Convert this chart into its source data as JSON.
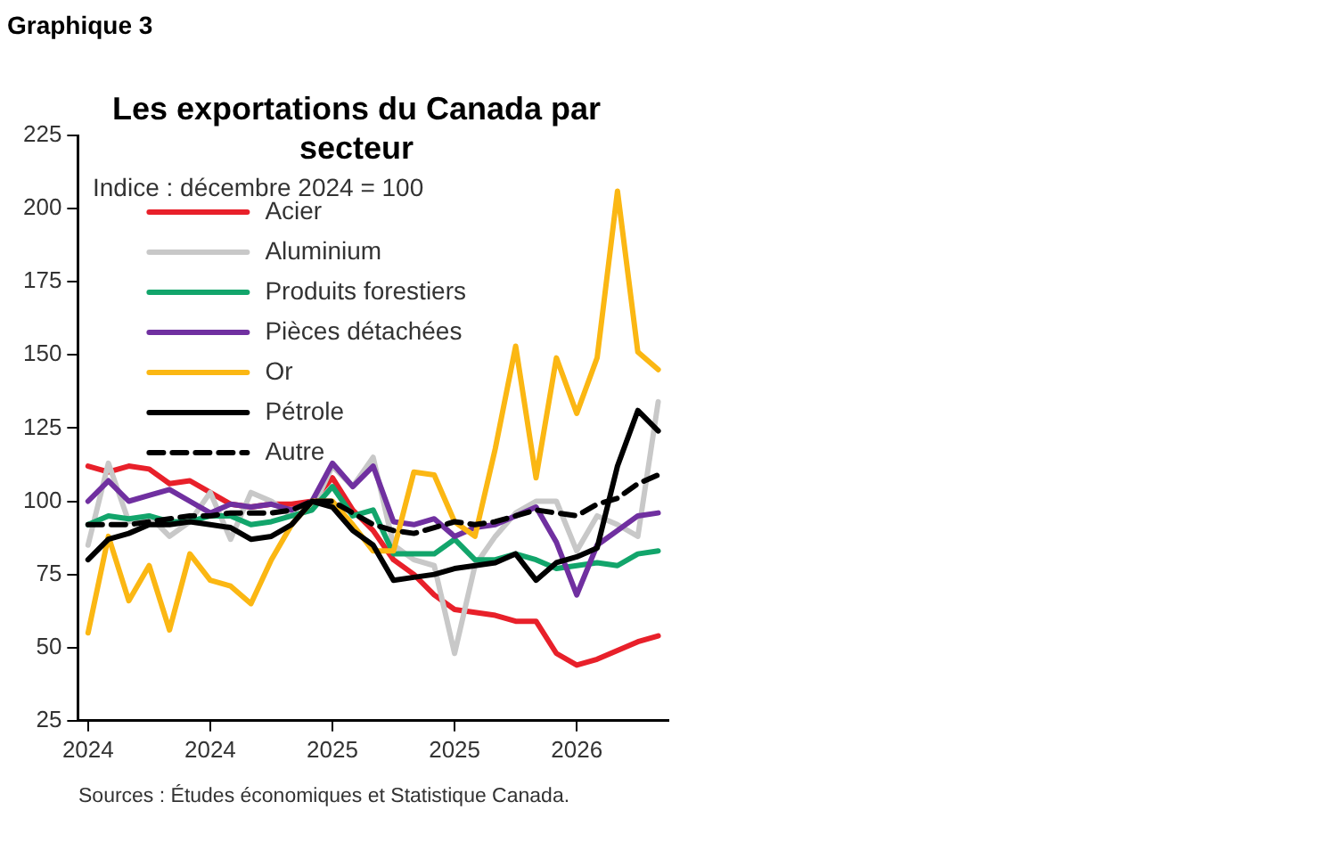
{
  "chart_data": {
    "type": "line",
    "title": "Les exportations du Canada par secteur",
    "subtitle": "Indice : décembre 2024 = 100",
    "annotations": [
      "Graphique 3",
      "Sources : Études économiques et Statistique Canada."
    ],
    "categories": [
      "2024",
      null,
      null,
      null,
      null,
      null,
      "2024",
      null,
      null,
      null,
      null,
      null,
      "2025",
      null,
      null,
      null,
      null,
      null,
      "2025",
      null,
      null,
      null,
      null,
      null,
      "2026",
      null,
      null,
      null,
      null
    ],
    "ylim": [
      25,
      225
    ],
    "yticks": [
      25,
      50,
      75,
      100,
      125,
      150,
      175,
      200,
      225
    ],
    "grid": false,
    "legend": "top left",
    "marker": "none",
    "series": [
      {
        "name": "Acier",
        "color": "#e8202a",
        "values": [
          112,
          110,
          112,
          111,
          106,
          107,
          103,
          99,
          98,
          99,
          99,
          100,
          108,
          97,
          90,
          80,
          75,
          68,
          63,
          62,
          61,
          59,
          59,
          48,
          44,
          46,
          49,
          52,
          54
        ]
      },
      {
        "name": "Aluminium",
        "color": "#c8c8c8",
        "values": [
          85,
          113,
          93,
          95,
          88,
          93,
          103,
          87,
          103,
          100,
          95,
          97,
          112,
          105,
          115,
          85,
          80,
          78,
          48,
          78,
          88,
          96,
          100,
          100,
          83,
          95,
          92,
          88,
          134
        ]
      },
      {
        "name": "Produits forestiers",
        "color": "#12a56b",
        "values": [
          92,
          95,
          94,
          95,
          93,
          93,
          95,
          95,
          92,
          93,
          95,
          97,
          105,
          95,
          97,
          82,
          82,
          82,
          87,
          80,
          80,
          82,
          80,
          77,
          78,
          79,
          78,
          82,
          83
        ]
      },
      {
        "name": "Pièces détachées",
        "color": "#7030a0",
        "values": [
          100,
          107,
          100,
          102,
          104,
          100,
          96,
          99,
          98,
          99,
          97,
          100,
          113,
          105,
          112,
          93,
          92,
          94,
          88,
          91,
          92,
          95,
          98,
          86,
          68,
          85,
          90,
          95,
          96
        ]
      },
      {
        "name": "Or",
        "color": "#fbb713",
        "values": [
          55,
          88,
          66,
          78,
          56,
          82,
          73,
          71,
          65,
          80,
          92,
          100,
          100,
          92,
          83,
          83,
          110,
          109,
          93,
          88,
          118,
          153,
          108,
          149,
          130,
          149,
          206,
          151,
          145
        ]
      },
      {
        "name": "Pétrole",
        "color": "#000000",
        "values": [
          80,
          87,
          89,
          92,
          92,
          93,
          92,
          91,
          87,
          88,
          92,
          100,
          98,
          90,
          85,
          73,
          74,
          75,
          77,
          78,
          79,
          82,
          73,
          79,
          81,
          84,
          112,
          131,
          124
        ]
      },
      {
        "name": "Autre",
        "color": "#000000",
        "line_style": "dashed",
        "values": [
          92,
          92,
          92,
          93,
          94,
          95,
          95,
          96,
          96,
          96,
          97,
          100,
          100,
          96,
          92,
          90,
          89,
          91,
          93,
          92,
          93,
          95,
          97,
          96,
          95,
          99,
          101,
          106,
          109
        ]
      }
    ]
  }
}
